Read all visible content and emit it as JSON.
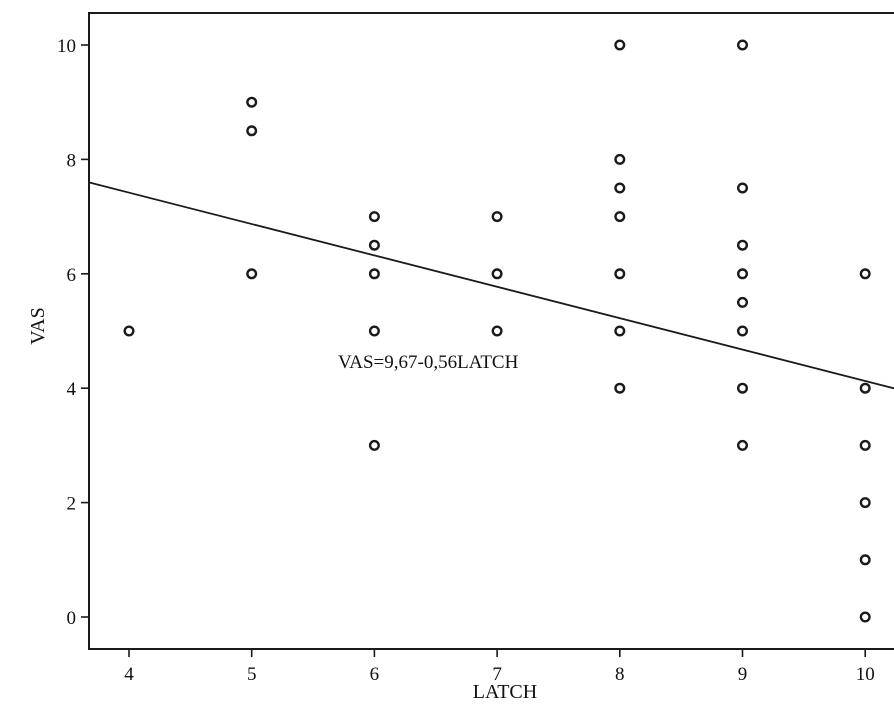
{
  "chart_data": {
    "type": "scatter",
    "xlabel": "LATCH",
    "ylabel": "VAS",
    "xlim": [
      3.7,
      10.25
    ],
    "ylim": [
      -0.6,
      10.6
    ],
    "x_ticks": [
      4,
      5,
      6,
      7,
      8,
      9,
      10
    ],
    "y_ticks": [
      0,
      2,
      4,
      6,
      8,
      10
    ],
    "y_tick_labels": [
      "0",
      "2",
      "4",
      "6",
      "8",
      "10"
    ],
    "grid": false,
    "points": [
      {
        "x": 4,
        "y": 5
      },
      {
        "x": 5,
        "y": 9
      },
      {
        "x": 5,
        "y": 8.5
      },
      {
        "x": 5,
        "y": 6
      },
      {
        "x": 6,
        "y": 7
      },
      {
        "x": 6,
        "y": 6.5
      },
      {
        "x": 6,
        "y": 6
      },
      {
        "x": 6,
        "y": 5
      },
      {
        "x": 6,
        "y": 3
      },
      {
        "x": 7,
        "y": 7
      },
      {
        "x": 7,
        "y": 6
      },
      {
        "x": 7,
        "y": 5
      },
      {
        "x": 8,
        "y": 10
      },
      {
        "x": 8,
        "y": 8
      },
      {
        "x": 8,
        "y": 7.5
      },
      {
        "x": 8,
        "y": 7
      },
      {
        "x": 8,
        "y": 6
      },
      {
        "x": 8,
        "y": 5
      },
      {
        "x": 8,
        "y": 4
      },
      {
        "x": 9,
        "y": 10
      },
      {
        "x": 9,
        "y": 7.5
      },
      {
        "x": 9,
        "y": 6.5
      },
      {
        "x": 9,
        "y": 6
      },
      {
        "x": 9,
        "y": 5.5
      },
      {
        "x": 9,
        "y": 5
      },
      {
        "x": 9,
        "y": 4
      },
      {
        "x": 9,
        "y": 3
      },
      {
        "x": 10,
        "y": 6
      },
      {
        "x": 10,
        "y": 4
      },
      {
        "x": 10,
        "y": 3
      },
      {
        "x": 10,
        "y": 2
      },
      {
        "x": 10,
        "y": 1
      },
      {
        "x": 10,
        "y": 0
      }
    ],
    "fit_line": {
      "intercept": 9.67,
      "slope": -0.56
    },
    "annotation": "VAS=9,67-0,56LATCH"
  }
}
